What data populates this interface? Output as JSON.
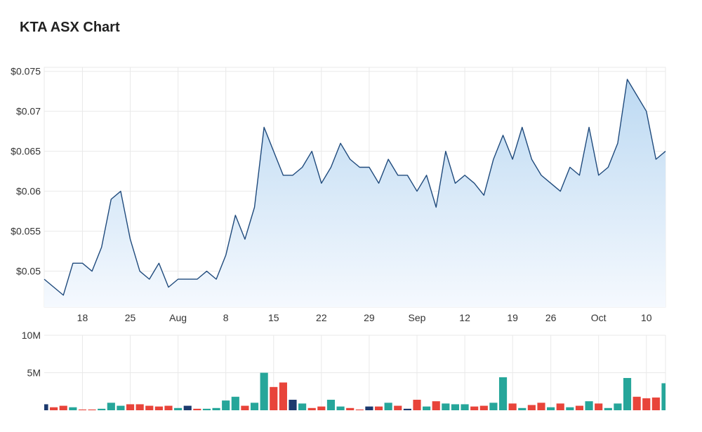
{
  "title": "KTA ASX Chart",
  "colors": {
    "line": "#1f4a7c",
    "fill_top": "#bcd9f2",
    "fill_bottom": "#f5f9fe",
    "grid": "#e9e9e9",
    "up": "#26a69a",
    "down": "#e8443a",
    "neutral": "#1c3a6e"
  },
  "chart_data": [
    {
      "type": "area",
      "title": "KTA ASX Chart",
      "xlabel": "",
      "ylabel": "",
      "ylim": [
        0.0455,
        0.0755
      ],
      "y_ticks": [
        0.05,
        0.055,
        0.06,
        0.065,
        0.07,
        0.075
      ],
      "y_tick_labels": [
        "$0.05",
        "$0.055",
        "$0.06",
        "$0.065",
        "$0.07",
        "$0.075"
      ],
      "x_ticks": [
        {
          "label": "18",
          "index": 4
        },
        {
          "label": "25",
          "index": 9
        },
        {
          "label": "Aug",
          "index": 14
        },
        {
          "label": "8",
          "index": 19
        },
        {
          "label": "15",
          "index": 24
        },
        {
          "label": "22",
          "index": 29
        },
        {
          "label": "29",
          "index": 34
        },
        {
          "label": "Sep",
          "index": 39
        },
        {
          "label": "12",
          "index": 44
        },
        {
          "label": "19",
          "index": 49
        },
        {
          "label": "26",
          "index": 53
        },
        {
          "label": "Oct",
          "index": 58
        },
        {
          "label": "10",
          "index": 63
        }
      ],
      "grid": true,
      "series": [
        {
          "values": [
            0.049,
            0.048,
            0.047,
            0.051,
            0.051,
            0.05,
            0.053,
            0.059,
            0.06,
            0.054,
            0.05,
            0.049,
            0.051,
            0.048,
            0.049,
            0.049,
            0.049,
            0.05,
            0.049,
            0.052,
            0.057,
            0.054,
            0.058,
            0.068,
            0.065,
            0.062,
            0.062,
            0.063,
            0.065,
            0.061,
            0.063,
            0.066,
            0.064,
            0.063,
            0.063,
            0.061,
            0.064,
            0.062,
            0.062,
            0.06,
            0.062,
            0.058,
            0.065,
            0.061,
            0.062,
            0.061,
            0.0595,
            0.064,
            0.067,
            0.064,
            0.068,
            0.064,
            0.062,
            0.061,
            0.06,
            0.063,
            0.062,
            0.068,
            0.062,
            0.063,
            0.066,
            0.074,
            0.072,
            0.07,
            0.064,
            0.065
          ]
        }
      ]
    },
    {
      "type": "bar",
      "title": "",
      "ylim": [
        0,
        10000000
      ],
      "y_ticks": [
        5000000,
        10000000
      ],
      "y_tick_labels": [
        "5M",
        "10M"
      ],
      "grid": true,
      "volumes": [
        800000,
        400000,
        600000,
        400000,
        100000,
        100000,
        200000,
        1000000,
        600000,
        800000,
        800000,
        600000,
        500000,
        600000,
        300000,
        600000,
        200000,
        200000,
        300000,
        1300000,
        1800000,
        600000,
        1000000,
        5000000,
        3100000,
        3700000,
        1400000,
        900000,
        300000,
        500000,
        1400000,
        500000,
        300000,
        100000,
        500000,
        500000,
        1000000,
        600000,
        200000,
        1400000,
        500000,
        1200000,
        900000,
        800000,
        800000,
        500000,
        600000,
        1000000,
        4400000,
        900000,
        300000,
        700000,
        1000000,
        400000,
        900000,
        400000,
        600000,
        1200000,
        900000,
        300000,
        900000,
        4300000,
        1800000,
        1600000,
        1700000,
        3600000
      ],
      "volume_direction": [
        "neutral",
        "down",
        "down",
        "up",
        "down",
        "down",
        "up",
        "up",
        "up",
        "down",
        "down",
        "down",
        "down",
        "down",
        "up",
        "neutral",
        "down",
        "up",
        "up",
        "up",
        "up",
        "down",
        "up",
        "up",
        "down",
        "down",
        "neutral",
        "up",
        "down",
        "down",
        "up",
        "up",
        "down",
        "down",
        "neutral",
        "down",
        "up",
        "down",
        "neutral",
        "down",
        "up",
        "down",
        "up",
        "up",
        "up",
        "down",
        "down",
        "up",
        "up",
        "down",
        "up",
        "down",
        "down",
        "up",
        "down",
        "up",
        "down",
        "up",
        "down",
        "up",
        "up",
        "up",
        "down",
        "down",
        "down",
        "up"
      ]
    }
  ]
}
